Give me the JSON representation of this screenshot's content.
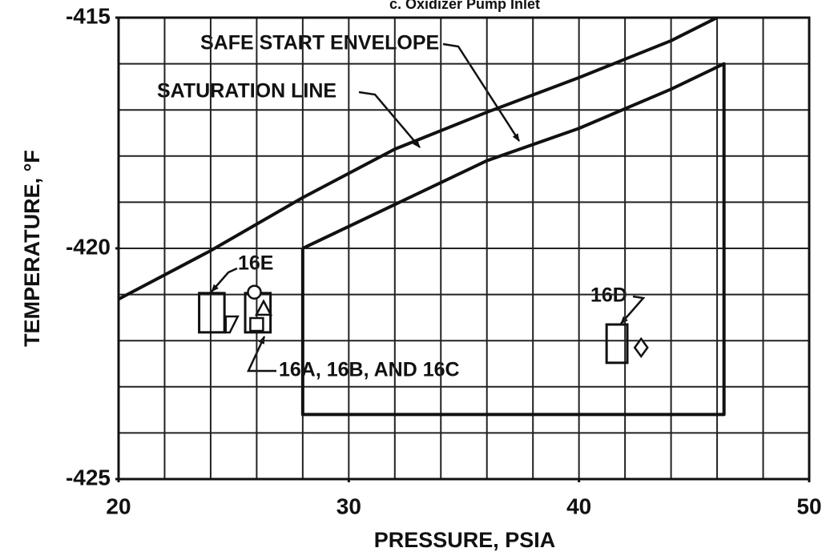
{
  "chart_data": {
    "type": "line",
    "title": "c. Oxidizer Pump Inlet",
    "x_label": "PRESSURE, PSIA",
    "y_label": "TEMPERATURE, °F",
    "xlim": [
      20,
      50
    ],
    "ylim": [
      -425,
      -415
    ],
    "xticks": [
      20,
      30,
      40,
      50
    ],
    "yticks": [
      -425,
      -420,
      -415
    ],
    "xgrid": [
      22,
      24,
      26,
      28,
      30,
      32,
      34,
      36,
      38,
      40,
      42,
      44,
      46,
      48
    ],
    "ygrid": [
      -424,
      -423,
      -422,
      -421,
      -420,
      -419,
      -418,
      -417,
      -416
    ],
    "grid": true,
    "series": [
      {
        "name": "SATURATION LINE",
        "color": "#111111",
        "x": [
          20,
          24,
          28,
          32,
          36,
          40,
          44,
          46
        ],
        "values": [
          -421.1,
          -420.05,
          -418.9,
          -417.85,
          -417.05,
          -416.3,
          -415.5,
          -415.0
        ]
      },
      {
        "name": "SAFE START ENVELOPE",
        "color": "#111111",
        "x": [
          28,
          28,
          46.3,
          46.3,
          44,
          40,
          36,
          32,
          28
        ],
        "values": [
          -420.0,
          -423.6,
          -423.6,
          -416.0,
          -416.55,
          -417.4,
          -418.1,
          -419.05,
          -420.0
        ]
      }
    ],
    "ranges": [
      {
        "x": [
          23.5,
          24.6
        ],
        "y": [
          -420.97,
          -421.82
        ]
      },
      {
        "x": [
          25.5,
          26.6
        ],
        "y": [
          -420.97,
          -421.82
        ]
      },
      {
        "x": [
          41.2,
          42.1
        ],
        "y": [
          -421.65,
          -422.48
        ]
      }
    ],
    "points": [
      {
        "shape": "flag",
        "x": 24.9,
        "y": -421.65
      },
      {
        "shape": "circle",
        "x": 25.9,
        "y": -420.95
      },
      {
        "shape": "triangle",
        "x": 26.3,
        "y": -421.3
      },
      {
        "shape": "square",
        "x": 26.0,
        "y": -421.65
      },
      {
        "shape": "diamond",
        "x": 42.7,
        "y": -422.15
      }
    ],
    "annotations": [
      "SAFE START ENVELOPE",
      "SATURATION LINE",
      "16E",
      "16D",
      "16A, 16B, AND 16C"
    ]
  }
}
